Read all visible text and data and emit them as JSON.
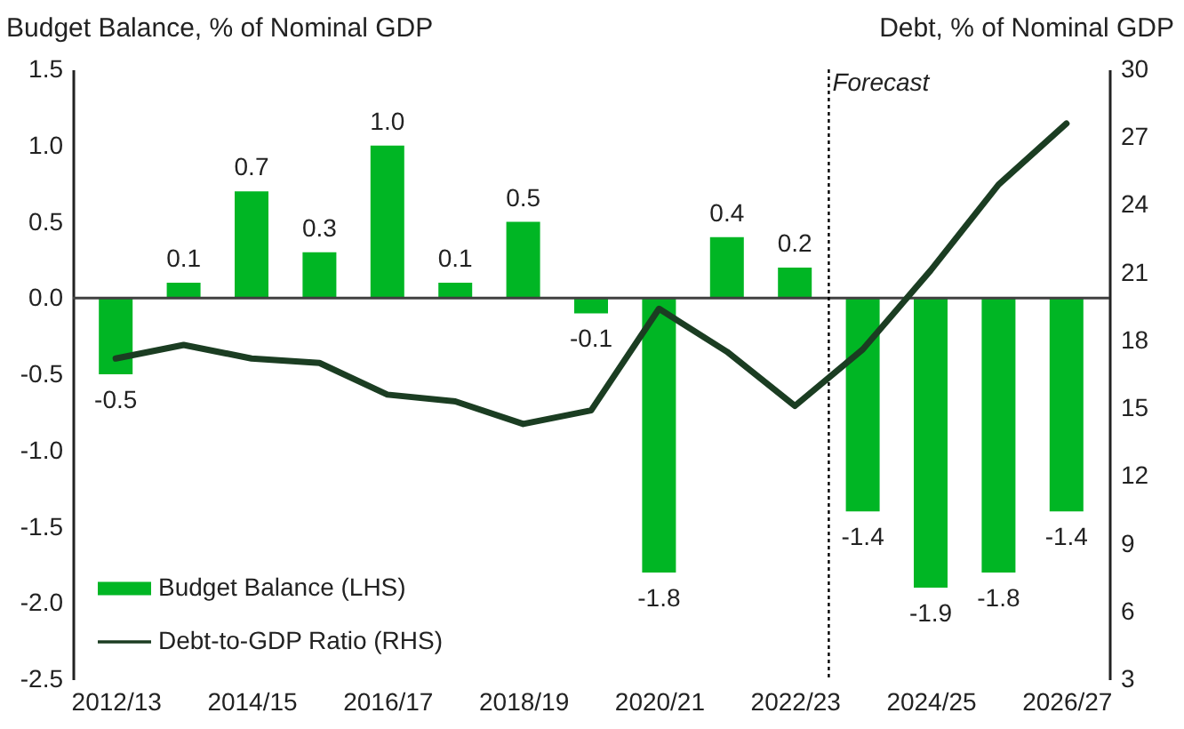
{
  "chart_data": {
    "type": "bar",
    "ylabel": "Budget Balance, % of Nominal GDP",
    "y2label": "Debt, % of Nominal GDP",
    "categories": [
      "2012/13",
      null,
      "2014/15",
      null,
      "2016/17",
      null,
      "2018/19",
      null,
      "2020/21",
      null,
      "2022/23",
      null,
      "2024/25",
      null,
      "2026/27"
    ],
    "series": [
      {
        "name": "Budget Balance (LHS)",
        "color": "#00b624",
        "values": [
          -0.5,
          0.1,
          0.7,
          0.3,
          1.0,
          0.1,
          0.5,
          -0.1,
          -1.8,
          0.4,
          0.2,
          -1.4,
          -1.9,
          -1.8,
          -1.4
        ],
        "value_labels": [
          "-0.5",
          "0.1",
          "0.7",
          "0.3",
          "1.0",
          "0.1",
          "0.5",
          "-0.1",
          "-1.8",
          "0.4",
          "0.2",
          "-1.4",
          "-1.9",
          "-1.8",
          "-1.4"
        ]
      },
      {
        "name": "Debt-to-GDP Ratio (RHS)",
        "type": "line",
        "axis": "y2",
        "color": "#1b3d22",
        "values": [
          17.2,
          17.8,
          17.2,
          17.0,
          15.6,
          15.3,
          14.3,
          14.9,
          19.4,
          17.5,
          15.1,
          17.6,
          21.1,
          24.9,
          27.6
        ]
      }
    ],
    "ylim": [
      -2.5,
      1.5
    ],
    "yticks": [
      {
        "value": -2.5,
        "label": "-2.5"
      },
      {
        "value": -2.0,
        "label": "-2.0"
      },
      {
        "value": -1.5,
        "label": "-1.5"
      },
      {
        "value": -1.0,
        "label": "-1.0"
      },
      {
        "value": -0.5,
        "label": "-0.5"
      },
      {
        "value": 0,
        "label": "0.0"
      },
      {
        "value": 0.5,
        "label": "0.5"
      },
      {
        "value": 1.0,
        "label": "1.0"
      },
      {
        "value": 1.5,
        "label": "1.5"
      }
    ],
    "y2lim": [
      3,
      30
    ],
    "y2ticks": [
      3,
      6,
      9,
      12,
      15,
      18,
      21,
      24,
      27,
      30
    ],
    "ref_lines": [
      {
        "axis": "y",
        "value": 0,
        "color": "#404040",
        "line_style": "solid"
      },
      {
        "axis": "x",
        "value": "2022/23",
        "label": "Forecast",
        "color": "#000000",
        "line_style": "dotted"
      }
    ],
    "legend": "bottom left",
    "grid": false
  }
}
